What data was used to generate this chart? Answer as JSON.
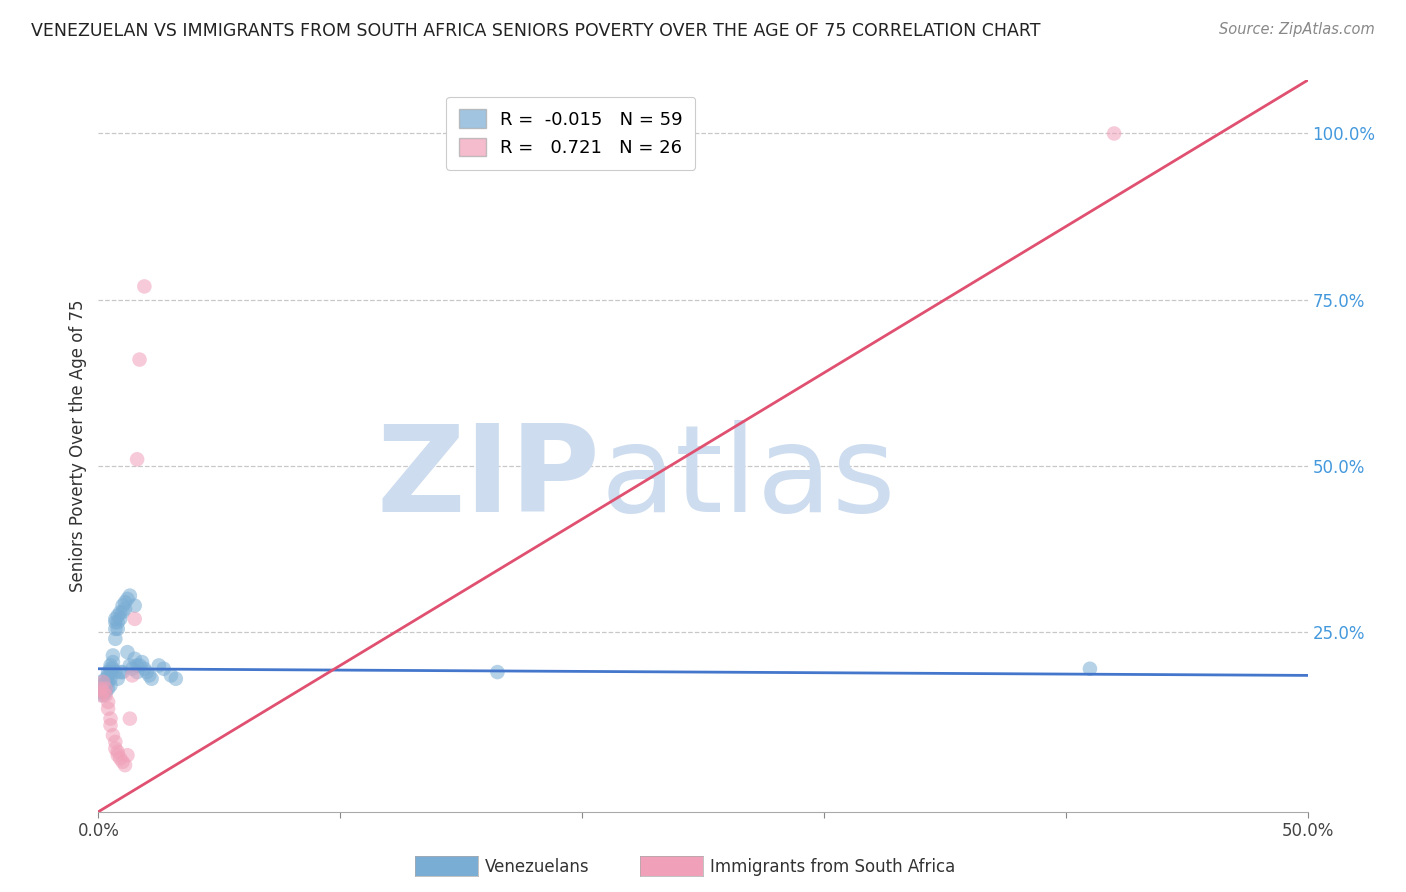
{
  "title": "VENEZUELAN VS IMMIGRANTS FROM SOUTH AFRICA SENIORS POVERTY OVER THE AGE OF 75 CORRELATION CHART",
  "source": "Source: ZipAtlas.com",
  "ylabel": "Seniors Poverty Over the Age of 75",
  "xlim": [
    0.0,
    0.5
  ],
  "ylim": [
    -0.02,
    1.08
  ],
  "yticks_right": [
    0.0,
    0.25,
    0.5,
    0.75,
    1.0
  ],
  "yticklabels_right": [
    "",
    "25.0%",
    "50.0%",
    "75.0%",
    "100.0%"
  ],
  "grid_color": "#c8c8c8",
  "watermark_zip": "ZIP",
  "watermark_atlas": "atlas",
  "watermark_color": "#cddcee",
  "blue_color": "#7aadd4",
  "pink_color": "#f0a0b8",
  "blue_edge": "#5588bb",
  "pink_edge": "#d06080",
  "blue_line_color": "#4477cc",
  "pink_line_color": "#e05070",
  "R_blue": -0.015,
  "N_blue": 59,
  "R_pink": 0.721,
  "N_pink": 26,
  "legend_label_blue": "Venezuelans",
  "legend_label_pink": "Immigrants from South Africa",
  "blue_x": [
    0.001,
    0.001,
    0.002,
    0.002,
    0.002,
    0.003,
    0.003,
    0.003,
    0.003,
    0.004,
    0.004,
    0.004,
    0.004,
    0.005,
    0.005,
    0.005,
    0.005,
    0.005,
    0.006,
    0.006,
    0.006,
    0.007,
    0.007,
    0.007,
    0.007,
    0.007,
    0.008,
    0.008,
    0.008,
    0.008,
    0.009,
    0.009,
    0.009,
    0.01,
    0.01,
    0.01,
    0.011,
    0.011,
    0.012,
    0.012,
    0.013,
    0.013,
    0.014,
    0.015,
    0.015,
    0.016,
    0.016,
    0.017,
    0.018,
    0.019,
    0.02,
    0.021,
    0.022,
    0.025,
    0.027,
    0.03,
    0.032,
    0.165,
    0.41
  ],
  "blue_y": [
    0.175,
    0.16,
    0.17,
    0.16,
    0.155,
    0.18,
    0.175,
    0.165,
    0.16,
    0.19,
    0.185,
    0.175,
    0.165,
    0.2,
    0.195,
    0.19,
    0.18,
    0.17,
    0.215,
    0.205,
    0.195,
    0.27,
    0.265,
    0.255,
    0.24,
    0.19,
    0.275,
    0.265,
    0.255,
    0.18,
    0.28,
    0.27,
    0.19,
    0.29,
    0.28,
    0.19,
    0.295,
    0.285,
    0.3,
    0.22,
    0.305,
    0.2,
    0.195,
    0.29,
    0.21,
    0.2,
    0.19,
    0.2,
    0.205,
    0.195,
    0.19,
    0.185,
    0.18,
    0.2,
    0.195,
    0.185,
    0.18,
    0.19,
    0.195
  ],
  "pink_x": [
    0.001,
    0.001,
    0.002,
    0.002,
    0.003,
    0.003,
    0.004,
    0.004,
    0.005,
    0.005,
    0.006,
    0.007,
    0.007,
    0.008,
    0.008,
    0.009,
    0.01,
    0.011,
    0.012,
    0.013,
    0.014,
    0.015,
    0.016,
    0.017,
    0.019,
    0.42
  ],
  "pink_y": [
    0.165,
    0.155,
    0.175,
    0.16,
    0.165,
    0.155,
    0.145,
    0.135,
    0.12,
    0.11,
    0.095,
    0.085,
    0.075,
    0.07,
    0.065,
    0.06,
    0.055,
    0.05,
    0.065,
    0.12,
    0.185,
    0.27,
    0.51,
    0.66,
    0.77,
    1.0
  ],
  "blue_line_x": [
    0.0,
    0.5
  ],
  "blue_line_y": [
    0.195,
    0.185
  ],
  "pink_line_x": [
    0.0,
    0.5
  ],
  "pink_line_y": [
    -0.02,
    1.08
  ]
}
